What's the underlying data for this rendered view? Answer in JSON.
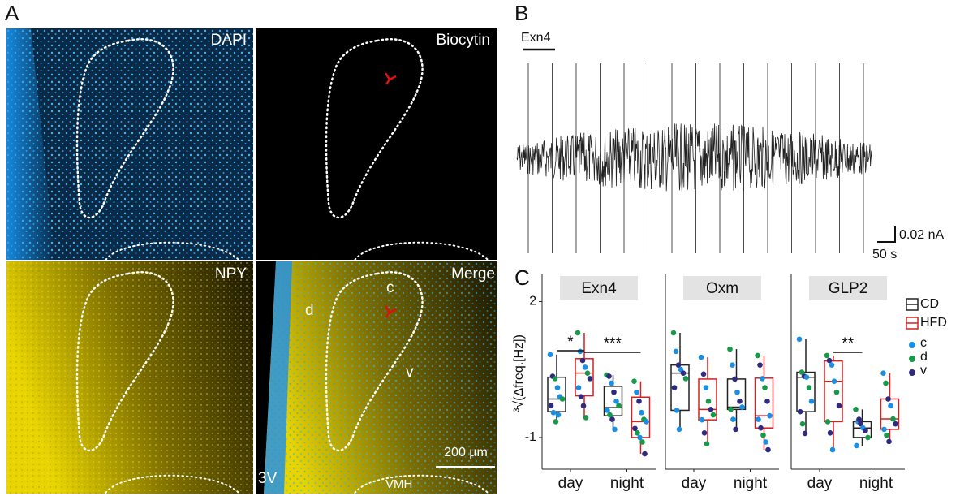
{
  "panels": {
    "a": {
      "label": "A",
      "images": [
        {
          "label": "DAPI"
        },
        {
          "label": "Biocytin"
        },
        {
          "label": "NPY"
        },
        {
          "label": "Merge"
        }
      ],
      "annotations": {
        "c": "c",
        "d": "d",
        "v": "v",
        "ventricle": "3V",
        "nucleus": "VMH",
        "scale": "200 µm"
      }
    },
    "b": {
      "label": "B",
      "drug": "Exn4",
      "scale_y": "0.02 nA",
      "scale_x": "50 s"
    },
    "c": {
      "label": "C"
    }
  },
  "legend": {
    "series": [
      {
        "name": "CD",
        "color": "#222222"
      },
      {
        "name": "HFD",
        "color": "#d42020"
      }
    ],
    "groups": [
      {
        "name": "c",
        "color": "#1b8fe3"
      },
      {
        "name": "d",
        "color": "#17994a"
      },
      {
        "name": "v",
        "color": "#2d2a80"
      }
    ]
  },
  "chart_data": [
    {
      "type": "box",
      "title": "Exn4",
      "y_label": "³√(Δfreq.[Hz])",
      "categories": [
        "day",
        "night"
      ],
      "ylim": [
        -1.7,
        2.6
      ],
      "yticks": [
        -1,
        2
      ],
      "series": [
        {
          "boxes": [
            {
              "min": -0.65,
              "q1": -0.43,
              "median": -0.15,
              "q3": 0.33,
              "max": 0.83,
              "points": [
                0.83,
                0.35,
                0.3,
                0.1,
                -0.1,
                -0.15,
                -0.3,
                -0.45,
                -0.65,
                -0.5
              ],
              "groups": [
                "c",
                "v",
                "d",
                "c",
                "c",
                "d",
                "v",
                "c",
                "d",
                "c"
              ]
            },
            {
              "min": -0.82,
              "q1": -0.52,
              "median": -0.34,
              "q3": 0.13,
              "max": 0.38,
              "points": [
                0.38,
                0.35,
                0.2,
                0.0,
                -0.2,
                -0.3,
                -0.4,
                -0.5,
                -0.6,
                -0.82
              ],
              "groups": [
                "d",
                "v",
                "c",
                "v",
                "c",
                "d",
                "c",
                "d",
                "v",
                "c"
              ]
            }
          ]
        },
        {
          "boxes": [
            {
              "min": -0.56,
              "q1": -0.08,
              "median": 0.42,
              "q3": 0.74,
              "max": 1.31,
              "points": [
                1.31,
                0.9,
                0.7,
                0.55,
                0.42,
                0.3,
                0.1,
                -0.1,
                -0.3,
                -0.56
              ],
              "groups": [
                "d",
                "c",
                "v",
                "c",
                "d",
                "v",
                "c",
                "v",
                "v",
                "d"
              ]
            },
            {
              "min": -1.36,
              "q1": -1.0,
              "median": -0.65,
              "q3": -0.11,
              "max": 0.24,
              "points": [
                0.24,
                0.0,
                -0.2,
                -0.45,
                -0.6,
                -0.65,
                -0.8,
                -0.9,
                -1.0,
                -1.1,
                -1.36
              ],
              "groups": [
                "d",
                "c",
                "v",
                "c",
                "d",
                "c",
                "v",
                "d",
                "c",
                "d",
                "v"
              ]
            }
          ]
        }
      ],
      "annotations": [
        {
          "label": "*"
        },
        {
          "label": "***"
        }
      ]
    },
    {
      "type": "box",
      "title": "Oxm",
      "categories": [
        "day",
        "night"
      ],
      "ylim": [
        -1.7,
        2.6
      ],
      "series": [
        {
          "boxes": [
            {
              "min": -0.82,
              "q1": -0.4,
              "median": 0.42,
              "q3": 0.6,
              "max": 1.31,
              "points": [
                1.31,
                0.9,
                0.6,
                0.5,
                0.42,
                0.3,
                0.1,
                -0.4,
                -0.82
              ],
              "groups": [
                "d",
                "c",
                "v",
                "c",
                "v",
                "d",
                "v",
                "c",
                "c"
              ]
            },
            {
              "min": -0.82,
              "q1": -0.38,
              "median": -0.33,
              "q3": 0.29,
              "max": 0.95,
              "points": [
                0.95,
                0.6,
                0.29,
                0.0,
                -0.2,
                -0.33,
                -0.38,
                -0.6,
                -0.82
              ],
              "groups": [
                "d",
                "c",
                "v",
                "c",
                "v",
                "c",
                "d",
                "c",
                "v"
              ]
            }
          ]
        },
        {
          "boxes": [
            {
              "min": -1.14,
              "q1": -0.61,
              "median": -0.38,
              "q3": 0.29,
              "max": 0.77,
              "points": [
                0.77,
                0.4,
                0.1,
                -0.2,
                -0.38,
                -0.5,
                -0.61,
                -0.9,
                -1.14
              ],
              "groups": [
                "c",
                "v",
                "c",
                "d",
                "v",
                "d",
                "c",
                "v",
                "d"
              ]
            },
            {
              "min": -1.27,
              "q1": -0.79,
              "median": -0.52,
              "q3": 0.31,
              "max": 0.81,
              "points": [
                0.81,
                0.6,
                0.3,
                0.1,
                -0.2,
                -0.52,
                -0.6,
                -0.79,
                -0.95,
                -1.1,
                -1.27
              ],
              "groups": [
                "d",
                "v",
                "c",
                "d",
                "v",
                "c",
                "c",
                "v",
                "d",
                "c",
                "v"
              ]
            }
          ]
        }
      ]
    },
    {
      "type": "box",
      "title": "GLP2",
      "categories": [
        "day",
        "night"
      ],
      "ylim": [
        -1.7,
        2.6
      ],
      "series": [
        {
          "boxes": [
            {
              "min": -0.91,
              "q1": -0.43,
              "median": 0.33,
              "q3": 0.44,
              "max": 1.17,
              "points": [
                1.17,
                0.44,
                0.35,
                0.33,
                0.1,
                -0.2,
                -0.43,
                -0.7,
                -0.91
              ],
              "groups": [
                "c",
                "d",
                "v",
                "c",
                "d",
                "c",
                "v",
                "d",
                "v"
              ]
            },
            {
              "min": -1.18,
              "q1": -1.0,
              "median": -0.79,
              "q3": -0.65,
              "max": -0.38,
              "points": [
                -0.38,
                -0.65,
                -0.7,
                -0.79,
                -0.85,
                -1.0,
                -1.18,
                -0.6
              ],
              "groups": [
                "d",
                "c",
                "v",
                "c",
                "v",
                "d",
                "c",
                "v"
              ]
            }
          ]
        },
        {
          "boxes": [
            {
              "min": -1.27,
              "q1": -0.65,
              "median": 0.24,
              "q3": 0.69,
              "max": 0.81,
              "points": [
                0.81,
                0.7,
                0.6,
                0.24,
                0.0,
                -0.3,
                -0.65,
                -0.9,
                -1.27
              ],
              "groups": [
                "d",
                "v",
                "c",
                "c",
                "d",
                "v",
                "d",
                "v",
                "c"
              ]
            },
            {
              "min": -1.09,
              "q1": -0.82,
              "median": -0.59,
              "q3": -0.15,
              "max": 0.42,
              "points": [
                0.42,
                0.2,
                -0.15,
                -0.3,
                -0.59,
                -0.7,
                -0.82,
                -0.95,
                -1.09
              ],
              "groups": [
                "c",
                "d",
                "v",
                "c",
                "d",
                "v",
                "c",
                "d",
                "v"
              ]
            }
          ]
        }
      ],
      "annotations": [
        {
          "label": "**"
        }
      ]
    }
  ]
}
